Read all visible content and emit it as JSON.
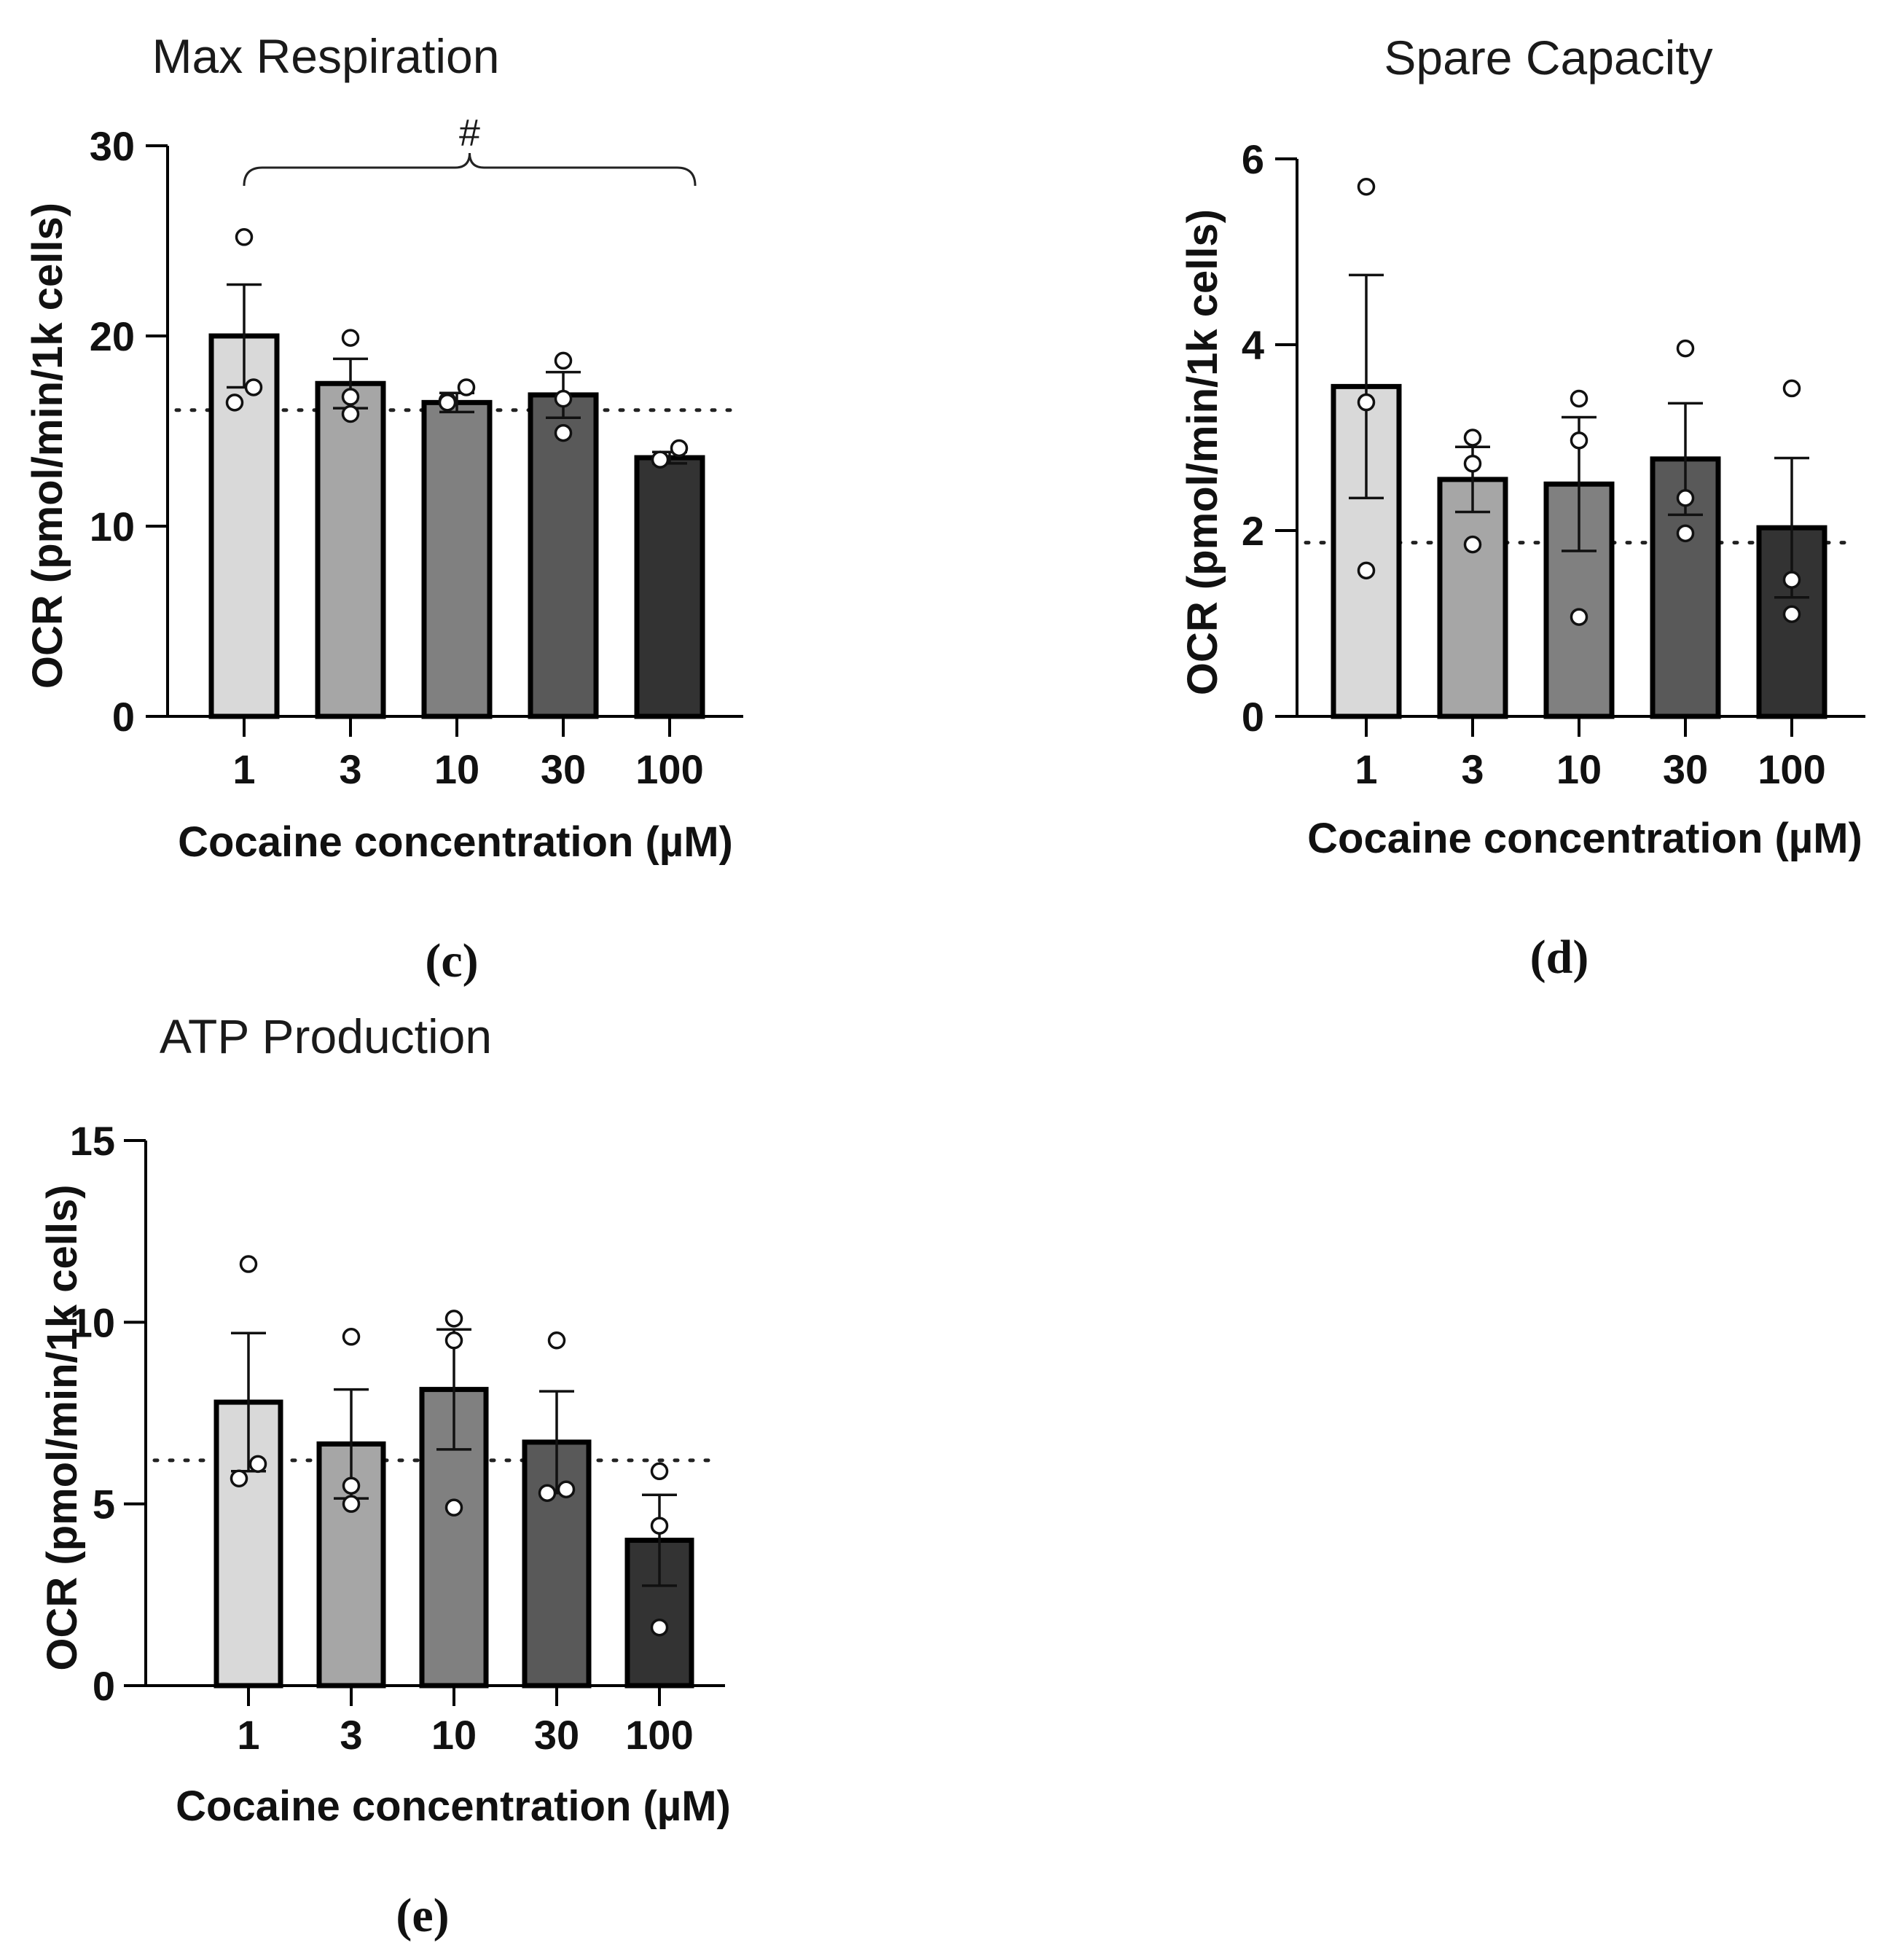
{
  "chart_data": [
    {
      "type": "bar",
      "panel": "(c)",
      "title": "Max Respiration",
      "xlabel": "Cocaine concentration (µM)",
      "ylabel": "OCR (pmol/min/1k cells)",
      "categories": [
        "1",
        "3",
        "10",
        "30",
        "100"
      ],
      "values": [
        20.0,
        17.5,
        16.5,
        16.9,
        13.6
      ],
      "errors": [
        2.7,
        1.3,
        0.5,
        1.2,
        0.3
      ],
      "points": [
        [
          25.2,
          17.3,
          16.5
        ],
        [
          19.9,
          16.8,
          15.9
        ],
        [
          17.3,
          16.6,
          16.5
        ],
        [
          18.7,
          16.7,
          14.9
        ],
        [
          14.1,
          13.5,
          13.5
        ]
      ],
      "bar_colors": [
        "#d9d9d9",
        "#a6a6a6",
        "#808080",
        "#595959",
        "#333333"
      ],
      "ylim": [
        0,
        30
      ],
      "yticks": [
        "0",
        "10",
        "20",
        "30"
      ],
      "reference_line": 16.1,
      "significance": "#"
    },
    {
      "type": "bar",
      "panel": "(d)",
      "title": "Spare Capacity",
      "xlabel": "Cocaine concentration (µM)",
      "ylabel": "OCR (pmol/min/1k cells)",
      "categories": [
        "1",
        "3",
        "10",
        "30",
        "100"
      ],
      "values": [
        3.55,
        2.55,
        2.5,
        2.77,
        2.03
      ],
      "errors": [
        1.2,
        0.35,
        0.72,
        0.6,
        0.75
      ],
      "points": [
        [
          5.7,
          3.38,
          1.57
        ],
        [
          3.0,
          2.72,
          1.85
        ],
        [
          3.42,
          2.97,
          1.07
        ],
        [
          3.96,
          2.35,
          1.97
        ],
        [
          3.53,
          1.47,
          1.1
        ]
      ],
      "bar_colors": [
        "#d9d9d9",
        "#a6a6a6",
        "#808080",
        "#595959",
        "#333333"
      ],
      "ylim": [
        0,
        6
      ],
      "yticks": [
        "0",
        "2",
        "4",
        "6"
      ],
      "reference_line": 1.87
    },
    {
      "type": "bar",
      "panel": "(e)",
      "title": "ATP Production",
      "xlabel": "Cocaine concentration (µM)",
      "ylabel": "OCR (pmol/min/1k cells)",
      "categories": [
        "1",
        "3",
        "10",
        "30",
        "100"
      ],
      "values": [
        7.8,
        6.65,
        8.15,
        6.7,
        4.0
      ],
      "errors": [
        1.9,
        1.5,
        1.65,
        1.4,
        1.25
      ],
      "points": [
        [
          11.6,
          6.1,
          5.7
        ],
        [
          9.6,
          5.5,
          5.0
        ],
        [
          10.1,
          9.5,
          4.9
        ],
        [
          9.5,
          5.4,
          5.3
        ],
        [
          5.9,
          4.4,
          1.6
        ]
      ],
      "bar_colors": [
        "#d9d9d9",
        "#a6a6a6",
        "#808080",
        "#595959",
        "#333333"
      ],
      "ylim": [
        0,
        15
      ],
      "yticks": [
        "0",
        "5",
        "10",
        "15"
      ],
      "reference_line": 6.2
    }
  ]
}
